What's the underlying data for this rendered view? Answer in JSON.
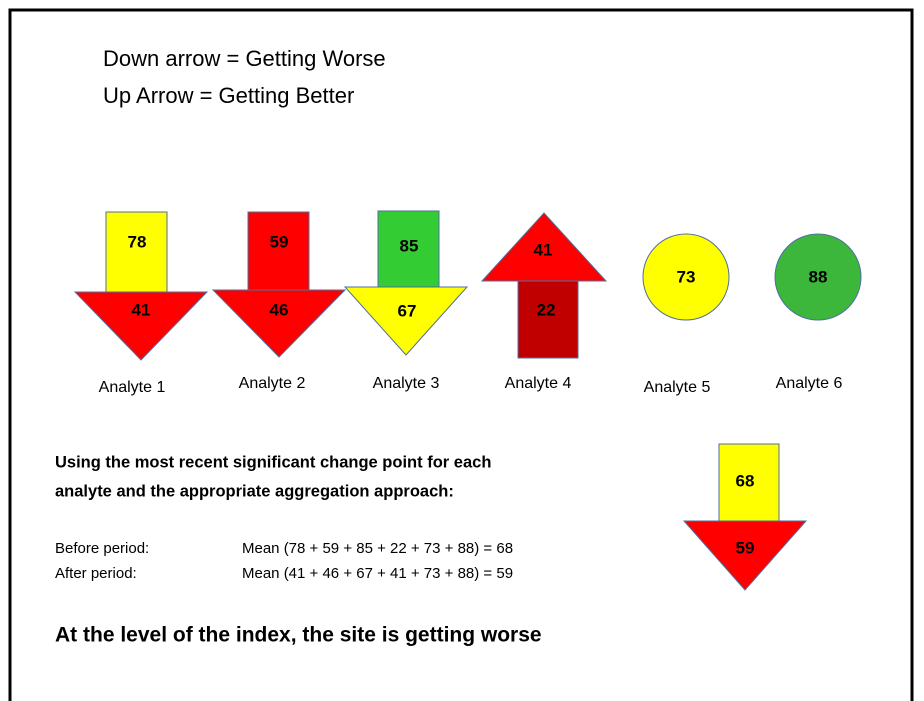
{
  "legend": [
    "Down arrow = Getting Worse",
    "Up Arrow = Getting Better"
  ],
  "analytes": [
    {
      "label": "Analyte 1",
      "before": 78,
      "after": 41
    },
    {
      "label": "Analyte 2",
      "before": 59,
      "after": 46
    },
    {
      "label": "Analyte 3",
      "before": 85,
      "after": 67
    },
    {
      "label": "Analyte 4",
      "before": 22,
      "after": 41
    },
    {
      "label": "Analyte 5",
      "value": 73
    },
    {
      "label": "Analyte 6",
      "value": 88
    }
  ],
  "summary": {
    "heading": [
      "Using the most recent significant  change point for each",
      "analyte and the appropriate aggregation approach:"
    ],
    "rows": [
      [
        "Before period:",
        "Mean (78 + 59 + 85 + 22 + 73 + 88) = 68"
      ],
      [
        "After period:",
        "Mean (41 + 46 + 67 + 41 + 73 + 88) = 59"
      ]
    ],
    "index": {
      "before": 68,
      "after": 59
    },
    "conclusion": "At the level of the index, the site is getting worse"
  }
}
